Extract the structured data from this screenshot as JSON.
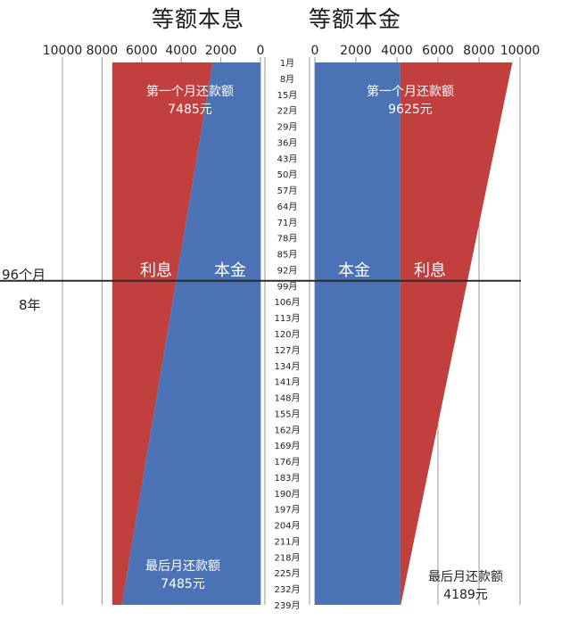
{
  "titles": {
    "left": "等额本息",
    "right": "等额本金"
  },
  "side_labels": {
    "months": "96个月",
    "years": "8年"
  },
  "chart_data": [
    {
      "type": "area",
      "title": "等额本息",
      "x_axis_ticks": [
        "10000",
        "8000",
        "6000",
        "4000",
        "2000",
        "0"
      ],
      "xlim": [
        0,
        10000
      ],
      "x_reversed": true,
      "months": {
        "first": 1,
        "last": 239
      },
      "series": [
        {
          "name": "本金",
          "start": 2400,
          "end": 7000
        },
        {
          "name": "利息",
          "start": 5085,
          "end": 485
        }
      ],
      "total_payment": {
        "first": 7485,
        "last": 7485
      },
      "labels": {
        "first_month": "第一个月还款额",
        "first_value": "7485元",
        "last_month": "最后月还款额",
        "last_value": "7485元",
        "interest": "利息",
        "principal": "本金"
      },
      "colors": {
        "principal": "#4a72b5",
        "interest": "#c1403d"
      }
    },
    {
      "type": "area",
      "title": "等额本金",
      "x_axis_ticks": [
        "0",
        "2000",
        "4000",
        "6000",
        "8000",
        "10000"
      ],
      "xlim": [
        0,
        10000
      ],
      "months": {
        "first": 1,
        "last": 239
      },
      "series": [
        {
          "name": "本金",
          "start": 4170,
          "end": 4170
        },
        {
          "name": "利息",
          "start": 5455,
          "end": 19
        }
      ],
      "total_payment": {
        "first": 9625,
        "last": 4189
      },
      "labels": {
        "first_month": "第一个月还款额",
        "first_value": "9625元",
        "last_month": "最后月还款额",
        "last_value": "4189元",
        "principal": "本金",
        "interest": "利息"
      },
      "colors": {
        "principal": "#4a72b5",
        "interest": "#c1403d"
      }
    }
  ],
  "month_labels": [
    "1月",
    "8月",
    "15月",
    "22月",
    "29月",
    "36月",
    "43月",
    "50月",
    "57月",
    "64月",
    "71月",
    "78月",
    "85月",
    "92月",
    "99月",
    "106月",
    "113月",
    "120月",
    "127月",
    "134月",
    "141月",
    "148月",
    "155月",
    "162月",
    "169月",
    "176月",
    "183月",
    "190月",
    "197月",
    "204月",
    "211月",
    "218月",
    "225月",
    "232月",
    "239月"
  ],
  "marker": {
    "month": 96,
    "color": "#2b2b2b"
  }
}
